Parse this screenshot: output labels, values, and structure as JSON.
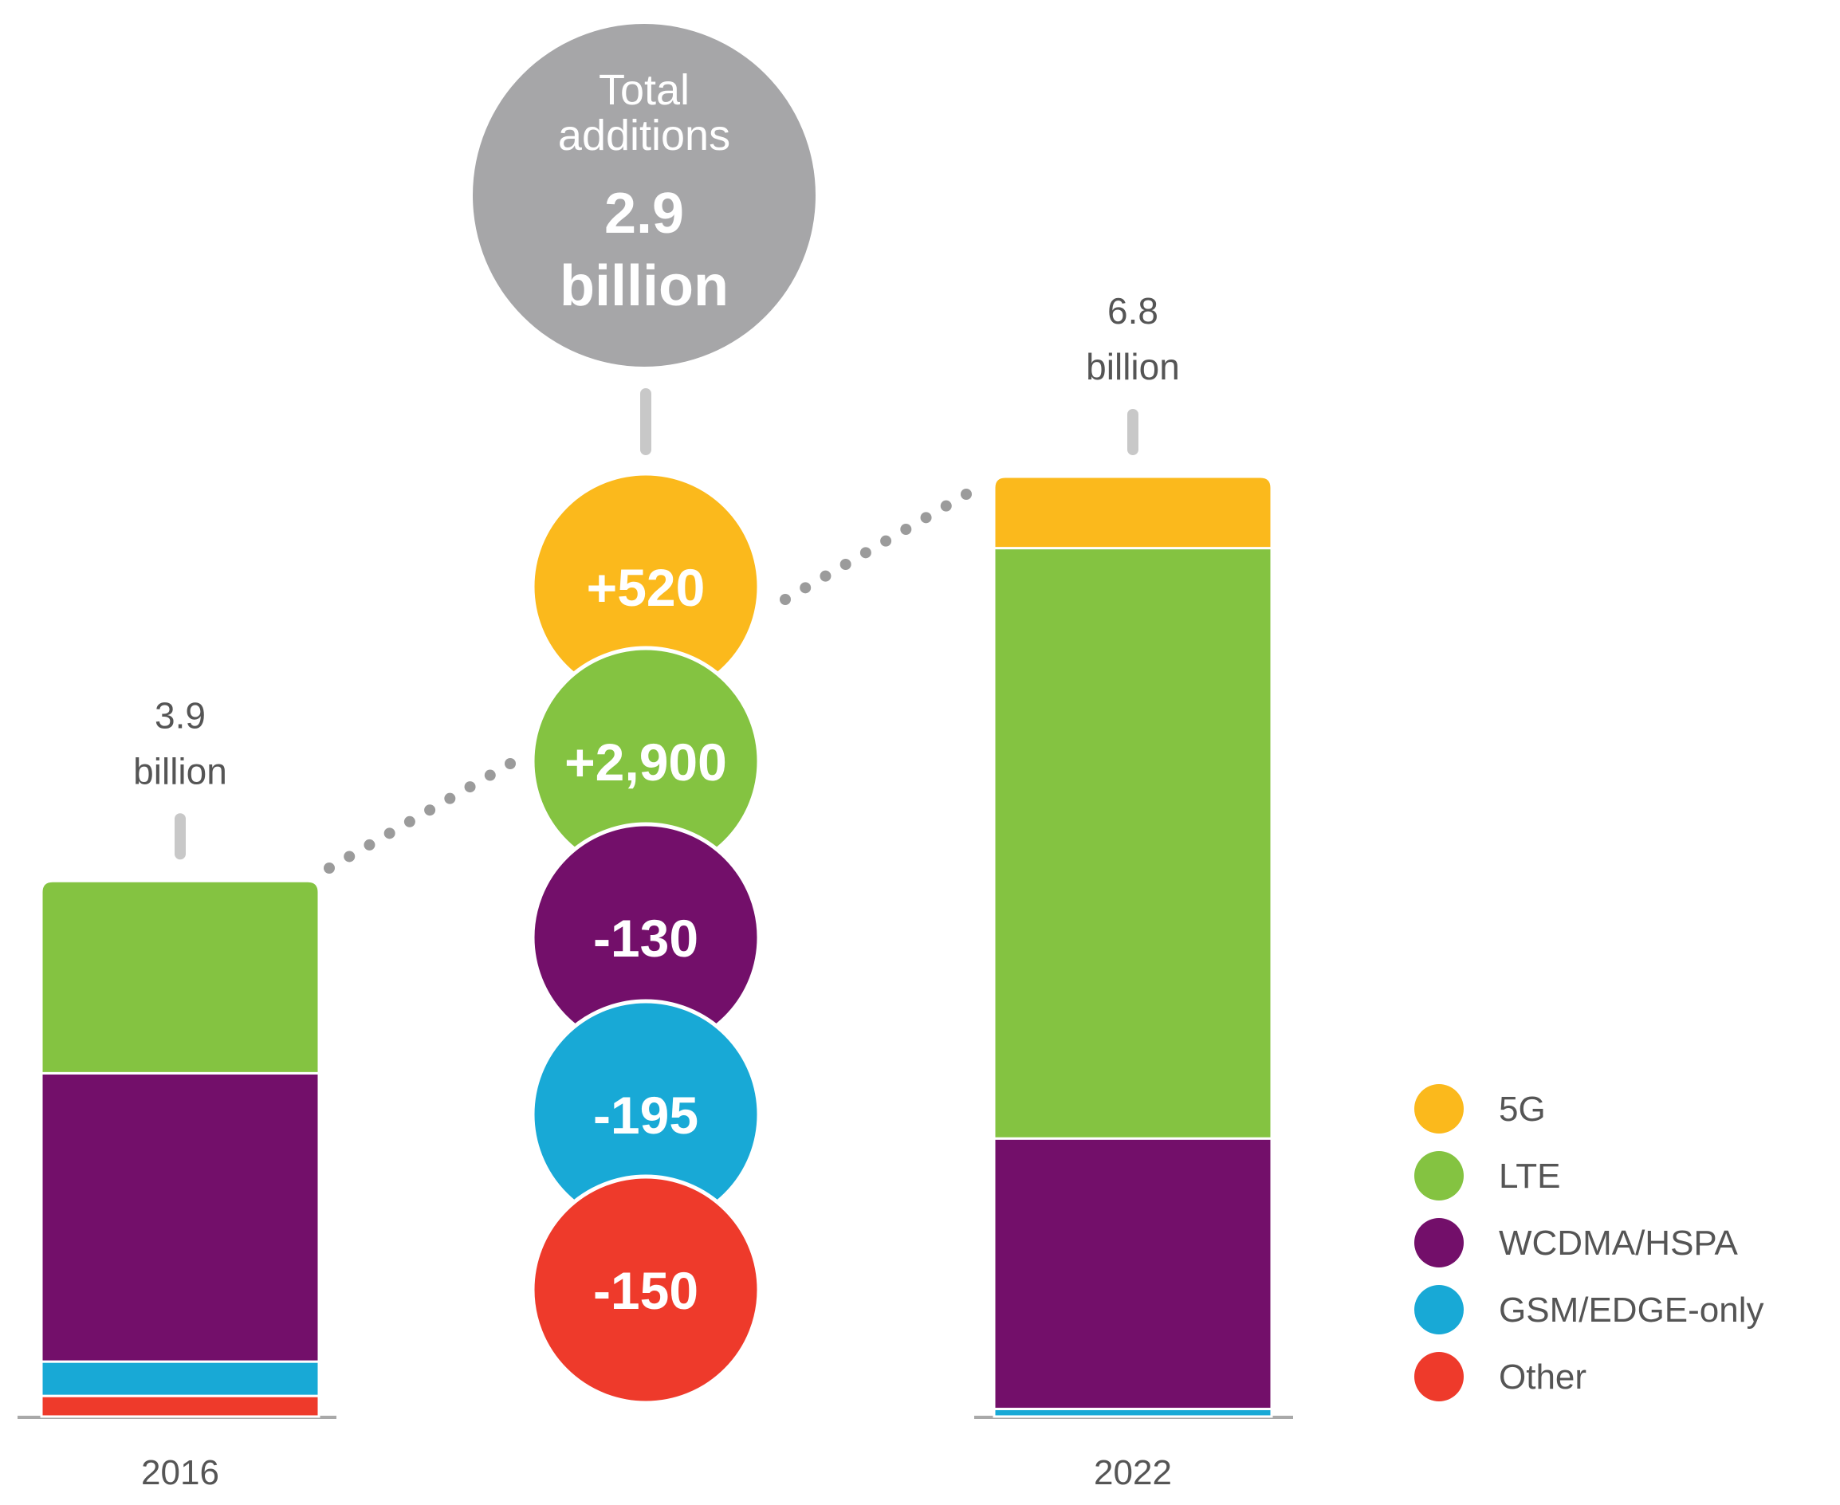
{
  "chart_data": {
    "type": "bar",
    "unit_note": "segment values in millions of subscriptions",
    "categories": [
      "2016",
      "2022"
    ],
    "series": [
      {
        "name": "5G",
        "color": "#FBB91C",
        "values": [
          0,
          520
        ]
      },
      {
        "name": "LTE",
        "color": "#84C341",
        "values": [
          1400,
          4300
        ]
      },
      {
        "name": "WCDMA/HSPA",
        "color": "#730F6A",
        "values": [
          2100,
          1970
        ]
      },
      {
        "name": "GSM/EDGE-only",
        "color": "#18A9D6",
        "values": [
          250,
          55
        ]
      },
      {
        "name": "Other",
        "color": "#EE3A2B",
        "values": [
          150,
          0
        ]
      }
    ],
    "totals": [
      {
        "category": "2016",
        "value": "3.9",
        "unit": "billion"
      },
      {
        "category": "2022",
        "value": "6.8",
        "unit": "billion"
      }
    ],
    "changes": [
      {
        "label": "+520",
        "series": "5G",
        "color": "#FBB91C"
      },
      {
        "label": "+2,900",
        "series": "LTE",
        "color": "#84C341"
      },
      {
        "label": "-130",
        "series": "WCDMA/HSPA",
        "color": "#730F6A"
      },
      {
        "label": "-195",
        "series": "GSM/EDGE-only",
        "color": "#18A9D6"
      },
      {
        "label": "-150",
        "series": "Other",
        "color": "#EE3A2B"
      }
    ],
    "summary": {
      "line1": "Total",
      "line2": "additions",
      "value": "2.9",
      "unit": "billion",
      "color": "#A6A6A8"
    },
    "legend": {
      "position": "bottom-right"
    },
    "title": "",
    "xlabel": "",
    "ylabel": ""
  }
}
